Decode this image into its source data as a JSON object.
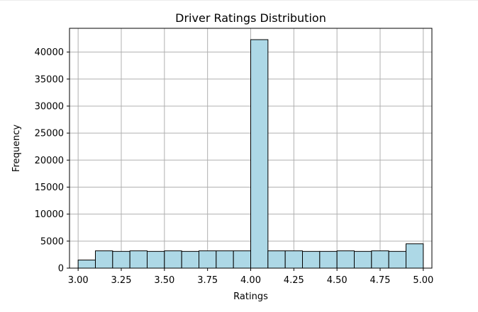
{
  "chart_data": {
    "type": "bar",
    "title": "Driver Ratings Distribution",
    "xlabel": "Ratings",
    "ylabel": "Frequency",
    "bin_edges": [
      3.0,
      3.1,
      3.2,
      3.3,
      3.4,
      3.5,
      3.6,
      3.7,
      3.8,
      3.9,
      4.0,
      4.1,
      4.2,
      4.3,
      4.4,
      4.5,
      4.6,
      4.7,
      4.8,
      4.9,
      5.0
    ],
    "values": [
      1500,
      3200,
      3100,
      3200,
      3100,
      3200,
      3100,
      3200,
      3200,
      3200,
      42300,
      3200,
      3200,
      3100,
      3100,
      3200,
      3100,
      3200,
      3100,
      4500
    ],
    "xlim": [
      2.95,
      5.05
    ],
    "ylim": [
      0,
      44400
    ],
    "xticks": [
      3.0,
      3.25,
      3.5,
      3.75,
      4.0,
      4.25,
      4.5,
      4.75,
      5.0
    ],
    "xtick_labels": [
      "3.00",
      "3.25",
      "3.50",
      "3.75",
      "4.00",
      "4.25",
      "4.50",
      "4.75",
      "5.00"
    ],
    "yticks": [
      0,
      5000,
      10000,
      15000,
      20000,
      25000,
      30000,
      35000,
      40000
    ],
    "ytick_labels": [
      "0",
      "5000",
      "10000",
      "15000",
      "20000",
      "25000",
      "30000",
      "35000",
      "40000"
    ],
    "grid": true,
    "bar_color": "#add8e6",
    "edge_color": "#000000",
    "grid_color": "#b0b0b0"
  }
}
